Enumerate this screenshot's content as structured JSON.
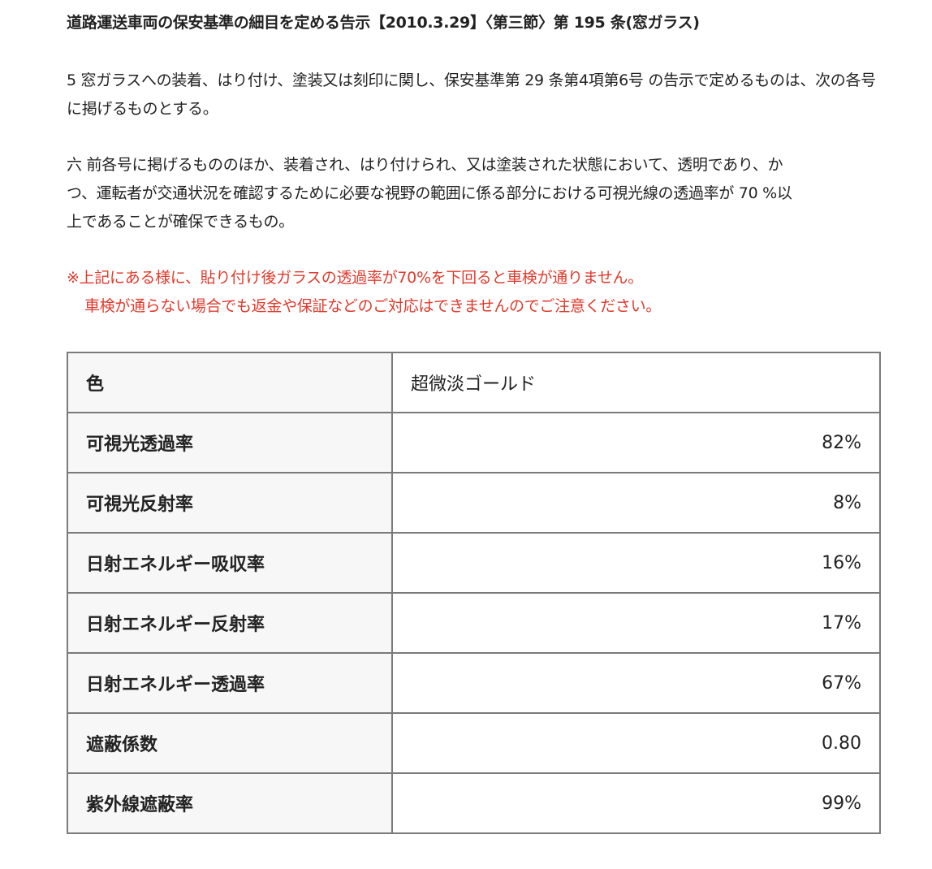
{
  "title": "道路運送車両の保安基準の細目を定める告示【2010.3.29】〈第三節〉第 195 条(窓ガラス)",
  "paragraphs": [
    "5 窓ガラスへの装着、はり付け、塗装又は刻印に関し、保安基準第 29 条第4項第6号 の告示で定めるものは、次の各号に掲げるものとする。",
    "六 前各号に掲げるもののほか、装着され、はり付けられ、又は塗装された状態において、透明であり、かつ、運転者が交通状況を確認するために必要な視野の範囲に係る部分における可視光線の透過率が 70 %以上であることが確保できるもの。"
  ],
  "note": {
    "line1": "※上記にある様に、貼り付け後ガラスの透過率が70%を下回ると車検が通りません。",
    "line2": "車検が通らない場合でも返金や保証などのご対応はできませんのでご注意ください。",
    "color": "#e03a2c"
  },
  "table": {
    "rows": [
      {
        "label": "色",
        "value": "超微淡ゴールド"
      },
      {
        "label": "可視光透過率",
        "value": "82%"
      },
      {
        "label": "可視光反射率",
        "value": "8%"
      },
      {
        "label": "日射エネルギー吸収率",
        "value": "16%"
      },
      {
        "label": "日射エネルギー反射率",
        "value": "17%"
      },
      {
        "label": "日射エネルギー透過率",
        "value": "67%"
      },
      {
        "label": "遮蔽係数",
        "value": "0.80"
      },
      {
        "label": "紫外線遮蔽率",
        "value": "99%"
      }
    ]
  }
}
